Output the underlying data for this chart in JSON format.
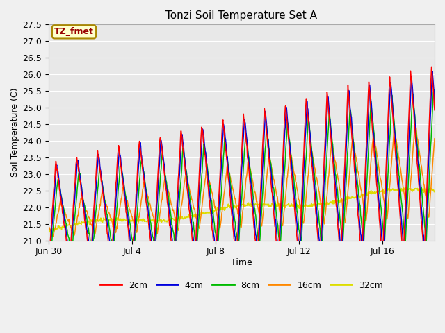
{
  "title": "Tonzi Soil Temperature Set A",
  "xlabel": "Time",
  "ylabel": "Soil Temperature (C)",
  "ylim": [
    21.0,
    27.5
  ],
  "xlim": [
    0,
    18.5
  ],
  "x_ticks_labels": [
    "Jun 30",
    "Jul 4",
    "Jul 8",
    "Jul 12",
    "Jul 16"
  ],
  "x_ticks_pos": [
    0,
    4,
    8,
    12,
    16
  ],
  "yticks": [
    21.0,
    21.5,
    22.0,
    22.5,
    23.0,
    23.5,
    24.0,
    24.5,
    25.0,
    25.5,
    26.0,
    26.5,
    27.0,
    27.5
  ],
  "legend_labels": [
    "2cm",
    "4cm",
    "8cm",
    "16cm",
    "32cm"
  ],
  "line_colors": [
    "#ff0000",
    "#0000dd",
    "#00bb00",
    "#ff8800",
    "#dddd00"
  ],
  "annotation_text": "TZ_fmet",
  "annotation_color": "#990000",
  "annotation_bg": "#ffffcc",
  "annotation_border": "#aa8800",
  "fig_bg": "#f0f0f0",
  "ax_bg": "#e8e8e8",
  "grid_color": "#ffffff"
}
